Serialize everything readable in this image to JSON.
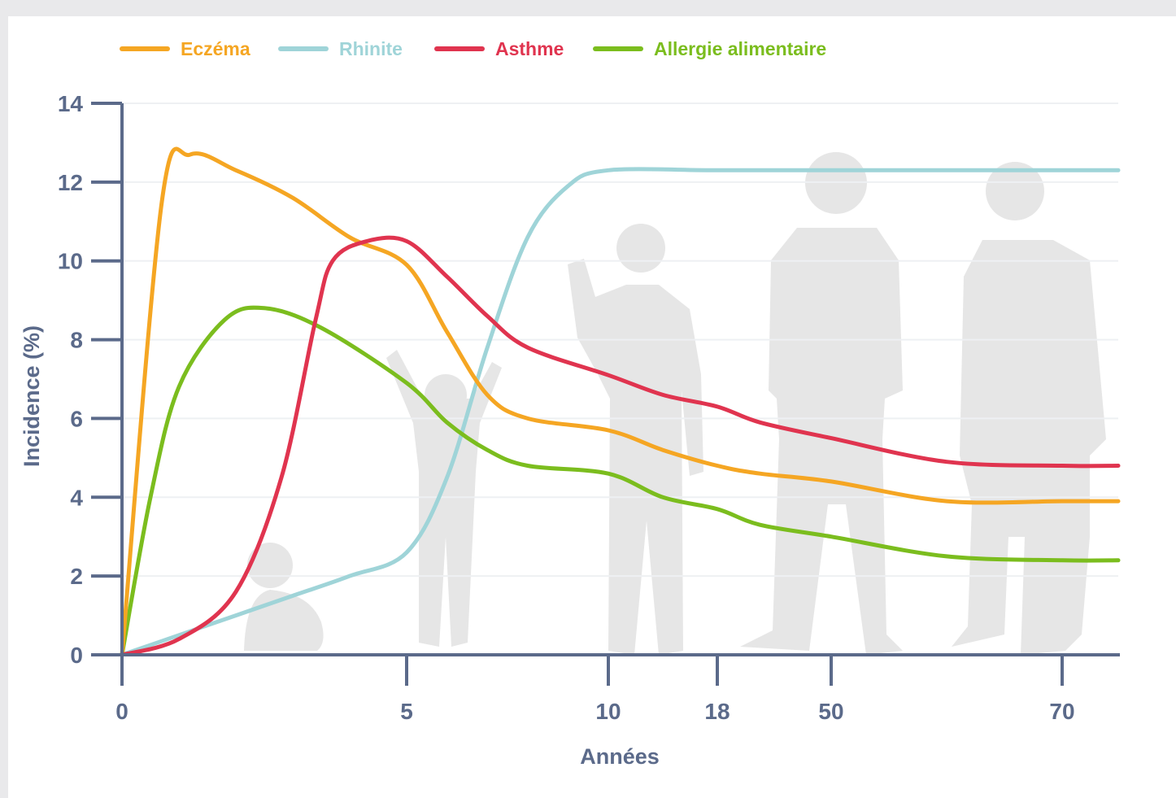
{
  "chart_data": {
    "type": "line",
    "title": "",
    "xlabel": "Années",
    "ylabel": "Incidence (%)",
    "ylim": [
      0,
      14
    ],
    "yticks": [
      "0",
      "2",
      "4",
      "6",
      "8",
      "10",
      "12",
      "14"
    ],
    "xticks": [
      "0",
      "5",
      "10",
      "18",
      "50",
      "70"
    ],
    "x_scale": "non-linear (piecewise, ticks unevenly spaced)",
    "grid": "horizontal, faint",
    "legend_position": "top",
    "background_decoration": "silhouettes of people from baby to elderly",
    "series": [
      {
        "name": "Eczéma",
        "color": "#f5a623",
        "points": [
          [
            0,
            0
          ],
          [
            0.7,
            11.5
          ],
          [
            1.2,
            12.7
          ],
          [
            2.0,
            12.3
          ],
          [
            3.0,
            11.6
          ],
          [
            4.0,
            10.6
          ],
          [
            5.0,
            9.9
          ],
          [
            6.0,
            8.2
          ],
          [
            7.0,
            6.6
          ],
          [
            8.0,
            6.0
          ],
          [
            10,
            5.7
          ],
          [
            14,
            5.2
          ],
          [
            18,
            4.8
          ],
          [
            30,
            4.6
          ],
          [
            50,
            4.4
          ],
          [
            60,
            3.9
          ],
          [
            70,
            3.9
          ],
          [
            75,
            3.9
          ]
        ]
      },
      {
        "name": "Rhinite",
        "color": "#9fd4d8",
        "points": [
          [
            0,
            0
          ],
          [
            1.0,
            0.5
          ],
          [
            2.0,
            1.0
          ],
          [
            3.0,
            1.5
          ],
          [
            4.0,
            2.0
          ],
          [
            5.0,
            2.6
          ],
          [
            6.0,
            4.5
          ],
          [
            7.0,
            7.8
          ],
          [
            8.0,
            10.6
          ],
          [
            9.0,
            11.9
          ],
          [
            10,
            12.3
          ],
          [
            18,
            12.3
          ],
          [
            50,
            12.3
          ],
          [
            70,
            12.3
          ],
          [
            75,
            12.3
          ]
        ]
      },
      {
        "name": "Asthme",
        "color": "#e0344f",
        "points": [
          [
            0,
            0
          ],
          [
            1.0,
            0.4
          ],
          [
            2.0,
            1.6
          ],
          [
            2.8,
            4.5
          ],
          [
            3.4,
            8.5
          ],
          [
            3.7,
            10.0
          ],
          [
            4.3,
            10.5
          ],
          [
            5.0,
            10.5
          ],
          [
            6.0,
            9.6
          ],
          [
            7.0,
            8.6
          ],
          [
            8.0,
            7.8
          ],
          [
            10,
            7.1
          ],
          [
            14,
            6.6
          ],
          [
            18,
            6.3
          ],
          [
            30,
            5.9
          ],
          [
            50,
            5.5
          ],
          [
            60,
            4.9
          ],
          [
            70,
            4.8
          ],
          [
            75,
            4.8
          ]
        ]
      },
      {
        "name": "Allergie alimentaire",
        "color": "#7bbd1e",
        "points": [
          [
            0,
            0
          ],
          [
            0.5,
            4.0
          ],
          [
            1.0,
            6.8
          ],
          [
            1.8,
            8.5
          ],
          [
            2.5,
            8.8
          ],
          [
            3.5,
            8.3
          ],
          [
            5.0,
            6.9
          ],
          [
            6.0,
            5.9
          ],
          [
            7.0,
            5.2
          ],
          [
            8.0,
            4.8
          ],
          [
            10,
            4.6
          ],
          [
            14,
            4.0
          ],
          [
            18,
            3.7
          ],
          [
            30,
            3.3
          ],
          [
            50,
            3.0
          ],
          [
            60,
            2.5
          ],
          [
            70,
            2.4
          ],
          [
            75,
            2.4
          ]
        ]
      }
    ]
  }
}
